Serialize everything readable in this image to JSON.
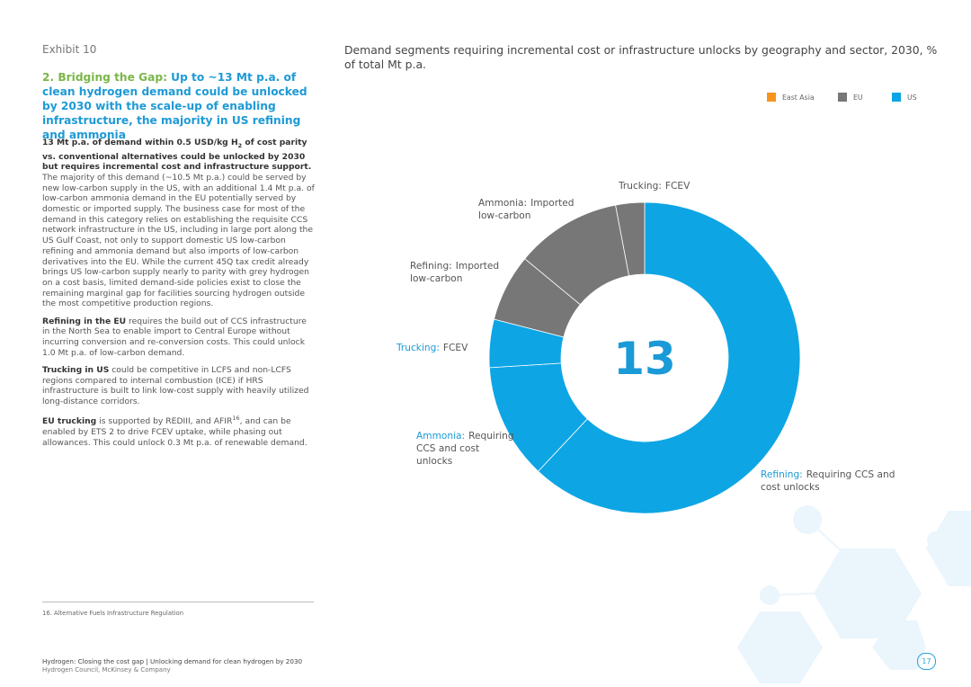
{
  "exhibit": "Exhibit 10",
  "heading": [
    {
      "t": "2. Bridging the Gap:",
      "color": "#7ab648"
    },
    {
      "t": " Up to ~13 Mt p.a. of clean hydrogen demand could be unlocked by 2030 with the scale-up of enabling infrastructure, the majority in US refining and ammonia",
      "color": "#1d9ad6"
    }
  ],
  "paragraphs": [
    [
      {
        "t": "13 Mt p.a. of demand within 0.5 USD/kg H",
        "b": true
      },
      {
        "t": "2",
        "b": true,
        "sub": true
      },
      {
        "t": " of cost parity vs. conventional alternatives could be unlocked by 2030 but requires incremental cost and infrastructure support.",
        "b": true
      },
      {
        "t": " The majority of this demand (~10.5 Mt p.a.) could be served by new low-carbon supply in the US, with an additional 1.4 Mt p.a. of low-carbon ammonia demand in the EU potentially served by domestic or imported supply. The business case for most of the demand in this category relies on establishing the requisite CCS network infrastructure in the US, including in large port along the US Gulf Coast, not only to support domestic US low-carbon refining and ammonia demand but also imports of low-carbon derivatives into the EU. While the current 45Q tax credit already brings US low-carbon supply nearly to parity with grey hydrogen on a cost basis, limited demand-side policies exist to close the remaining marginal gap for facilities sourcing hydrogen outside the most competitive production regions."
      }
    ],
    [
      {
        "t": "Refining in the EU",
        "b": true
      },
      {
        "t": " requires the build out of CCS infrastructure in the North Sea to enable import to Central Europe without incurring conversion and re-conversion costs. This could unlock 1.0 Mt p.a. of low-carbon demand."
      }
    ],
    [
      {
        "t": "Trucking in US",
        "b": true
      },
      {
        "t": " could be competitive in LCFS and non-LCFS regions compared to internal combustion (ICE) if HRS infrastructure is built to link low-cost supply with heavily utilized long-distance corridors."
      }
    ],
    [
      {
        "t": "EU trucking",
        "b": true
      },
      {
        "t": " is supported by REDIII, and AFIR"
      },
      {
        "t": "16",
        "sup": true
      },
      {
        "t": ", and can be enabled by ETS 2 to drive FCEV uptake, while phasing out allowances. This could unlock 0.3 Mt p.a. of renewable demand."
      }
    ]
  ],
  "chart_data": {
    "type": "pie",
    "title": "Demand segments requiring incremental cost or infrastructure unlocks by geography and sector, 2030, % of total Mt p.a.",
    "center_label": "13",
    "donut": true,
    "legend": [
      {
        "name": "East Asia",
        "color": "#f7941d"
      },
      {
        "name": "EU",
        "color": "#777777"
      },
      {
        "name": "US",
        "color": "#0ea5e4"
      }
    ],
    "segments": [
      {
        "sector": "Refining:",
        "detail": "Requiring CCS and cost unlocks",
        "value": 62,
        "color": "#0ea5e4",
        "label_color": "#1d9ad6"
      },
      {
        "sector": "Ammonia:",
        "detail": "Requiring CCS and cost unlocks",
        "value": 12,
        "color": "#0ea5e4",
        "label_color": "#1d9ad6"
      },
      {
        "sector": "Trucking:",
        "detail": "FCEV",
        "value": 5,
        "color": "#0ea5e4",
        "label_color": "#1d9ad6"
      },
      {
        "sector": "Refining:",
        "detail": "Imported low-carbon",
        "value": 7,
        "color": "#777777",
        "label_color": "#555555"
      },
      {
        "sector": "Ammonia:",
        "detail": "Imported low-carbon",
        "value": 11,
        "color": "#777777",
        "label_color": "#555555"
      },
      {
        "sector": "Trucking:",
        "detail": "FCEV",
        "value": 3,
        "color": "#777777",
        "label_color": "#555555"
      }
    ]
  },
  "footnote": "16.   Alternative Fuels Infrastructure Regulation",
  "footer": {
    "line1": "Hydrogen: Closing the cost gap | Unlocking demand for clean hydrogen by 2030",
    "line2": "Hydrogen Council, McKinsey & Company",
    "page": "17"
  }
}
